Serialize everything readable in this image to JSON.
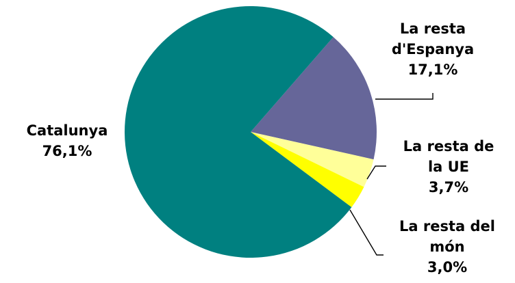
{
  "chart_data": {
    "type": "pie",
    "title": "",
    "slices": [
      {
        "label": "La resta d'Espanya",
        "value": 17.1,
        "value_text": "17,1%",
        "color": "#666699"
      },
      {
        "label": "La resta de la UE",
        "value": 3.7,
        "value_text": "3,7%",
        "color": "#FFFF99"
      },
      {
        "label": "La resta del món",
        "value": 3.0,
        "value_text": "3,0%",
        "color": "#FFFF00"
      },
      {
        "label": "Catalunya",
        "value": 76.1,
        "value_text": "76,1%",
        "color": "#008080"
      }
    ],
    "legend": "none",
    "data_labels": "category and percentage",
    "start_angle_clockwise_from_top_deg": 41
  }
}
